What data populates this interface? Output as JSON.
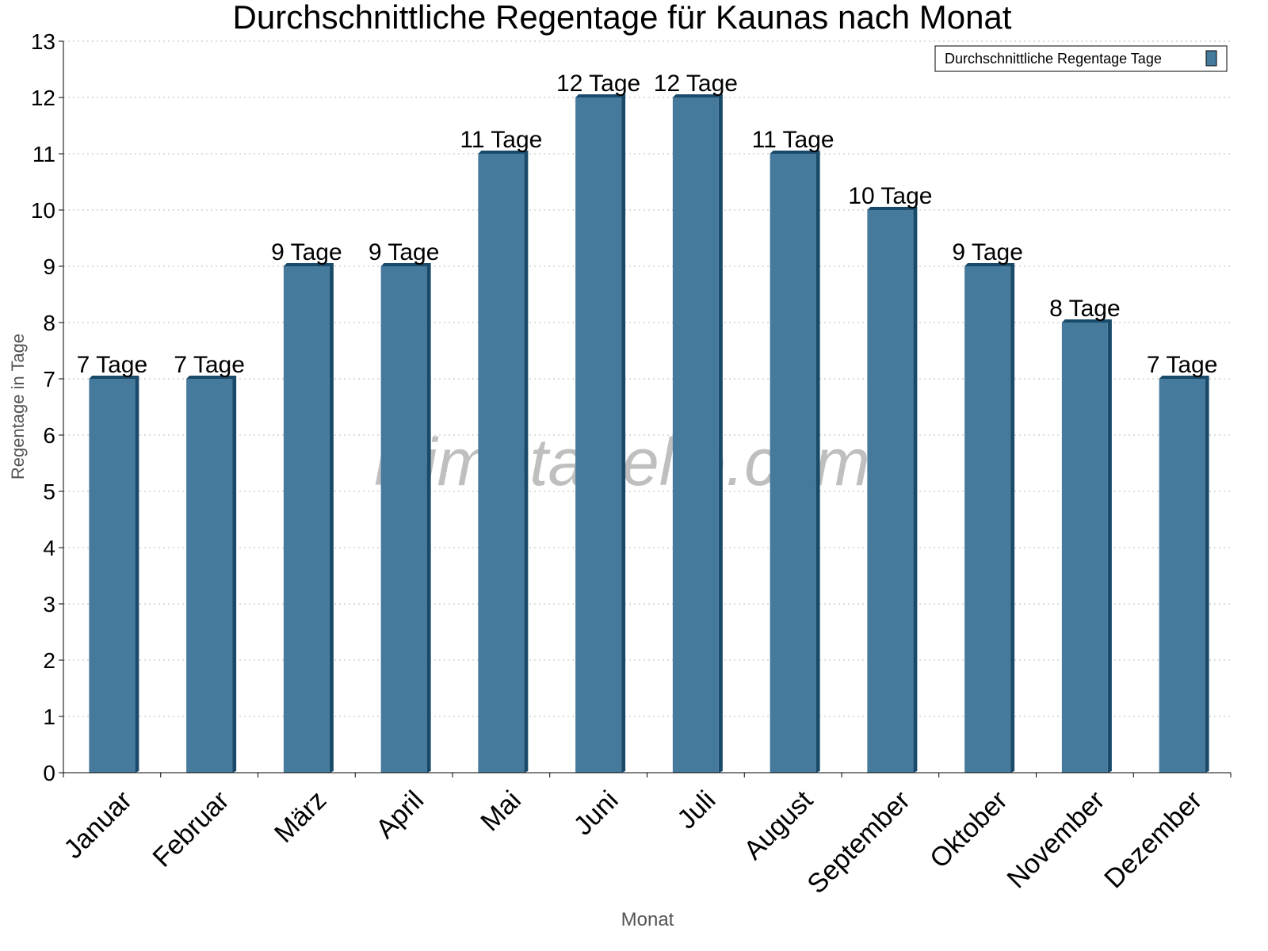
{
  "chart_data": {
    "type": "bar",
    "title": "Durchschnittliche Regentage für Kaunas nach Monat",
    "xlabel": "Monat",
    "ylabel": "Regentage in Tage",
    "ylim": [
      0,
      13
    ],
    "yticks": [
      "0",
      "1",
      "2",
      "3",
      "4",
      "5",
      "6",
      "7",
      "8",
      "9",
      "10",
      "11",
      "12",
      "13"
    ],
    "grid": true,
    "legend_position": "top-right",
    "categories": [
      "Januar",
      "Februar",
      "März",
      "April",
      "Mai",
      "Juni",
      "Juli",
      "August",
      "September",
      "Oktober",
      "November",
      "Dezember"
    ],
    "series": [
      {
        "name": "Durchschnittliche Regentage Tage",
        "values": [
          7,
          7,
          9,
          9,
          11,
          12,
          12,
          11,
          10,
          9,
          8,
          7
        ],
        "labels": [
          "7 Tage",
          "7 Tage",
          "9 Tage",
          "9 Tage",
          "11 Tage",
          "12 Tage",
          "12 Tage",
          "11 Tage",
          "10 Tage",
          "9 Tage",
          "8 Tage",
          "7 Tage"
        ],
        "color": "#467a9c",
        "shade_color": "#1a4a6a"
      }
    ],
    "watermark": "klimatabelle.com"
  }
}
